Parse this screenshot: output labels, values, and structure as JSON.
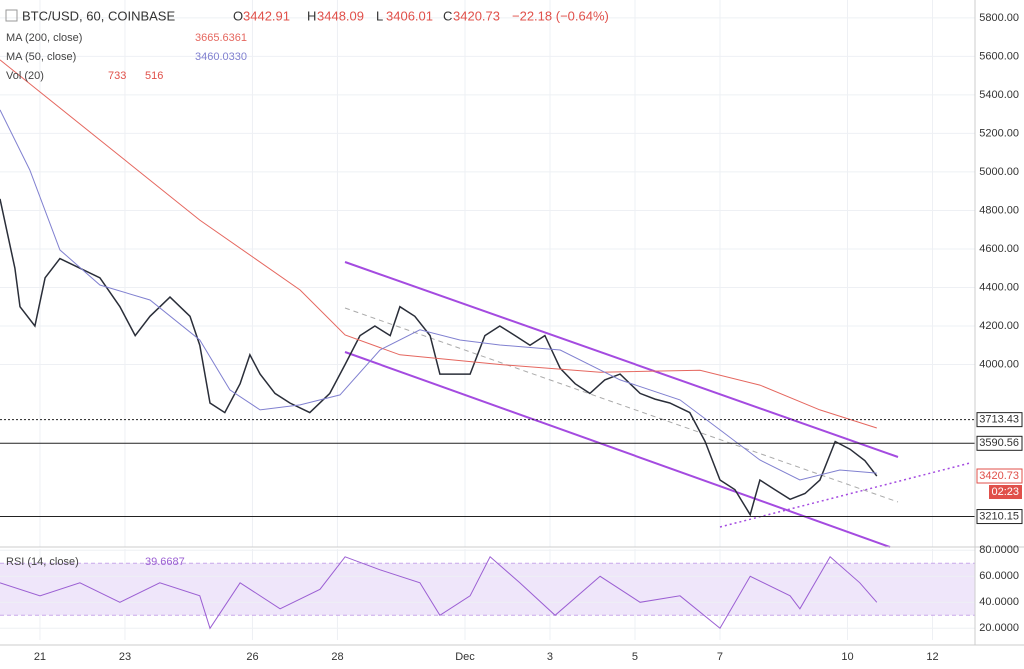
{
  "header": {
    "symbol": "BTC/USD, 60, COINBASE",
    "ohlc": [
      {
        "key": "O",
        "value": "3442.91"
      },
      {
        "key": "H",
        "value": "3448.09"
      },
      {
        "key": "L",
        "value": "3406.01"
      },
      {
        "key": "C",
        "value": "3420.73"
      }
    ],
    "change": "−22.18 (−0.64%)",
    "volume": {
      "name": "Vol (20)",
      "values": [
        "733",
        "516"
      ]
    }
  },
  "chart_data": [
    {
      "type": "line",
      "xlim": [
        20.06,
        43
      ],
      "xticks": [
        21,
        23,
        26,
        28,
        {
          "value": 31,
          "label": "Dec"
        },
        {
          "value": 33,
          "label": "3"
        },
        {
          "value": 35,
          "label": "5"
        },
        {
          "value": 37,
          "label": "7"
        },
        {
          "value": 40,
          "label": "10"
        },
        {
          "value": 42,
          "label": "12"
        }
      ],
      "ylim": [
        3052,
        5893
      ],
      "yticks": [
        {
          "value": 4000,
          "label": "4000.00"
        },
        {
          "value": 4200,
          "label": "4200.00"
        },
        {
          "value": 4400,
          "label": "4400.00"
        },
        {
          "value": 4600,
          "label": "4600.00"
        },
        {
          "value": 4800,
          "label": "4800.00"
        },
        {
          "value": 5000,
          "label": "5000.00"
        },
        {
          "value": 5200,
          "label": "5200.00"
        },
        {
          "value": 5400,
          "label": "5400.00"
        },
        {
          "value": 5600,
          "label": "5600.00"
        },
        {
          "value": 5800,
          "label": "5800.00"
        }
      ],
      "grid": true,
      "hlines": [
        3713.43,
        3590.56,
        3210.15
      ],
      "last_price": 3420.73,
      "countdown": "02:23",
      "series": [
        {
          "color": "#2a2e39",
          "x": [
            20.06,
            20.41,
            20.53,
            20.88,
            21.12,
            21.47,
            21.94,
            22.41,
            22.88,
            23.24,
            23.59,
            24.06,
            24.53,
            24.76,
            25.0,
            25.35,
            25.71,
            25.94,
            26.18,
            26.53,
            26.88,
            27.35,
            27.82,
            28.18,
            28.53,
            28.88,
            29.24,
            29.47,
            29.82,
            30.18,
            30.41,
            30.76,
            31.12,
            31.47,
            31.82,
            32.18,
            32.53,
            32.88,
            33.24,
            33.59,
            33.94,
            34.29,
            34.65,
            35.12,
            35.47,
            35.82,
            36.29,
            36.65,
            37.0,
            37.35,
            37.71,
            37.94,
            38.29,
            38.65,
            39.0,
            39.35,
            39.71,
            40.06,
            40.41,
            40.69
          ],
          "values": [
            4860,
            4500,
            4300,
            4200,
            4450,
            4550,
            4500,
            4450,
            4300,
            4150,
            4250,
            4350,
            4250,
            4100,
            3800,
            3750,
            3900,
            4050,
            3950,
            3850,
            3800,
            3750,
            3850,
            4000,
            4150,
            4200,
            4150,
            4300,
            4250,
            4150,
            3950,
            3950,
            3950,
            4150,
            4200,
            4150,
            4100,
            4150,
            3980,
            3900,
            3850,
            3920,
            3950,
            3850,
            3820,
            3800,
            3750,
            3600,
            3400,
            3350,
            3220,
            3400,
            3350,
            3300,
            3330,
            3400,
            3600,
            3560,
            3500,
            3420
          ]
        },
        {
          "name": "MA (200, close)",
          "legend_value": "3665.6361",
          "color": "#e5675f",
          "x": [
            20.06,
            22.41,
            24.76,
            27.12,
            28.18,
            29.47,
            31.82,
            34.18,
            36.53,
            37.94,
            39.35,
            40.69
          ],
          "values": [
            5582,
            5166,
            4750,
            4387,
            4153,
            4050,
            4000,
            3960,
            3970,
            3893,
            3764,
            3670
          ]
        },
        {
          "name": "MA (50, close)",
          "legend_value": "3460.0330",
          "color": "#8080d0",
          "x": [
            20.06,
            20.76,
            21.47,
            22.41,
            23.59,
            24.76,
            25.47,
            26.18,
            27.12,
            28.06,
            29.0,
            29.94,
            30.88,
            31.82,
            33.24,
            34.65,
            36.06,
            37.0,
            37.94,
            38.88,
            39.82,
            40.69
          ],
          "values": [
            5322,
            5010,
            4595,
            4413,
            4335,
            4127,
            3868,
            3764,
            3790,
            3842,
            4075,
            4180,
            4127,
            4101,
            4075,
            3920,
            3816,
            3660,
            3504,
            3400,
            3452,
            3436
          ]
        }
      ]
    },
    {
      "type": "line",
      "ylim": [
        11,
        81
      ],
      "yticks": [
        {
          "value": 20,
          "label": "20.0000"
        },
        {
          "value": 40,
          "label": "40.0000"
        },
        {
          "value": 60,
          "label": "60.0000"
        },
        {
          "value": 80,
          "label": "80.0000"
        }
      ],
      "band": [
        30,
        70
      ],
      "series": [
        {
          "name": "RSI (14, close)",
          "legend_value": "39.6687",
          "color": "#9b5fd3",
          "x": [
            20.06,
            21.0,
            21.94,
            22.88,
            23.82,
            24.76,
            25.0,
            25.71,
            26.65,
            27.59,
            28.18,
            29.0,
            29.94,
            30.41,
            31.12,
            31.59,
            32.29,
            33.12,
            34.18,
            35.12,
            36.06,
            37.0,
            37.71,
            38.65,
            38.88,
            39.59,
            40.29,
            40.69
          ],
          "values": [
            55,
            45,
            55,
            40,
            55,
            45,
            20,
            55,
            35,
            50,
            75,
            65,
            55,
            30,
            45,
            75,
            55,
            30,
            60,
            40,
            45,
            20,
            60,
            45,
            35,
            75,
            55,
            40
          ]
        }
      ]
    }
  ]
}
